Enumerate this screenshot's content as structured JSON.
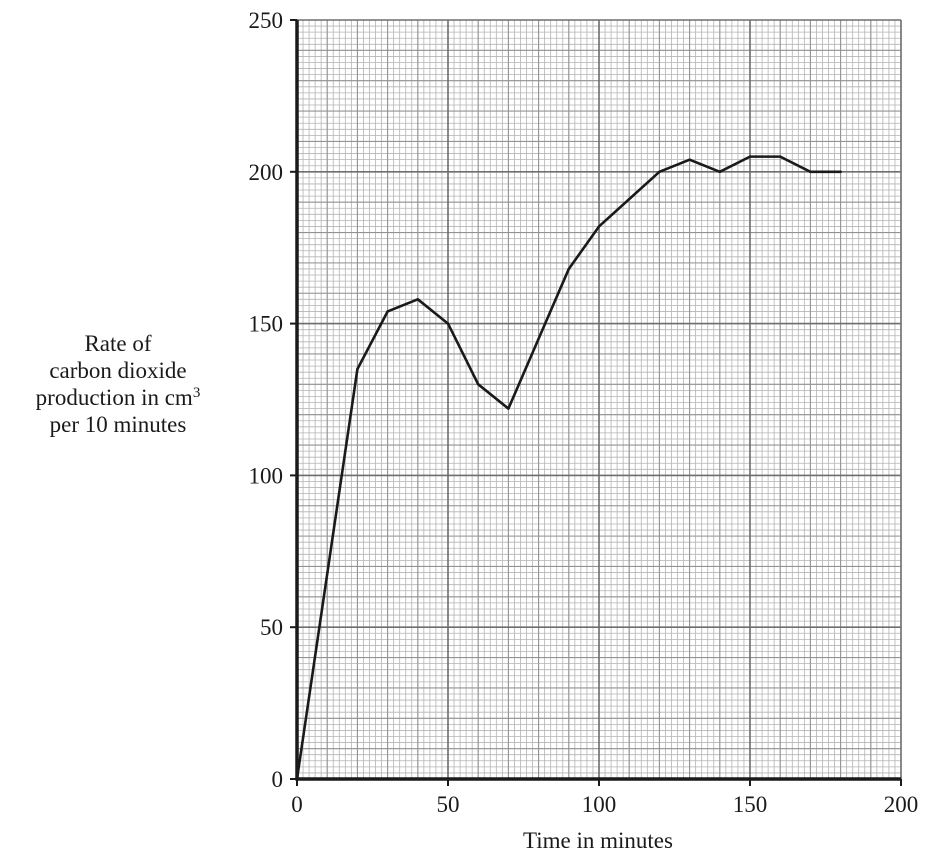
{
  "chart_data": {
    "type": "line",
    "title": "",
    "xlabel": "Time in minutes",
    "ylabel": {
      "line1": "Rate of",
      "line2": "carbon dioxide",
      "line3": "production in cm",
      "line3_sup": "3",
      "line4": "per 10 minutes"
    },
    "xlim": [
      0,
      200
    ],
    "ylim": [
      0,
      250
    ],
    "x_ticks": [
      "0",
      "50",
      "100",
      "150",
      "200"
    ],
    "y_ticks": [
      "0",
      "50",
      "100",
      "150",
      "200",
      "250"
    ],
    "grid": true,
    "grid_minor_step": {
      "x": 2,
      "y": 2
    },
    "grid_medium_step": {
      "x": 10,
      "y": 10
    },
    "grid_major_step": {
      "x": 50,
      "y": 50
    },
    "series": [
      {
        "color": "#1a1a1a",
        "points": [
          [
            0,
            0
          ],
          [
            20,
            135
          ],
          [
            30,
            154
          ],
          [
            40,
            158
          ],
          [
            50,
            150
          ],
          [
            60,
            130
          ],
          [
            70,
            122
          ],
          [
            80,
            145
          ],
          [
            90,
            168
          ],
          [
            100,
            182
          ],
          [
            110,
            191
          ],
          [
            120,
            200
          ],
          [
            130,
            204
          ],
          [
            140,
            200
          ],
          [
            150,
            205
          ],
          [
            160,
            205
          ],
          [
            170,
            200
          ],
          [
            180,
            200
          ]
        ]
      }
    ]
  },
  "colors": {
    "minor_grid": "#b4b4b4",
    "medium_grid": "#939393",
    "major_grid": "#6e6e6e",
    "axis": "#1a1a1a",
    "line": "#1a1a1a"
  }
}
